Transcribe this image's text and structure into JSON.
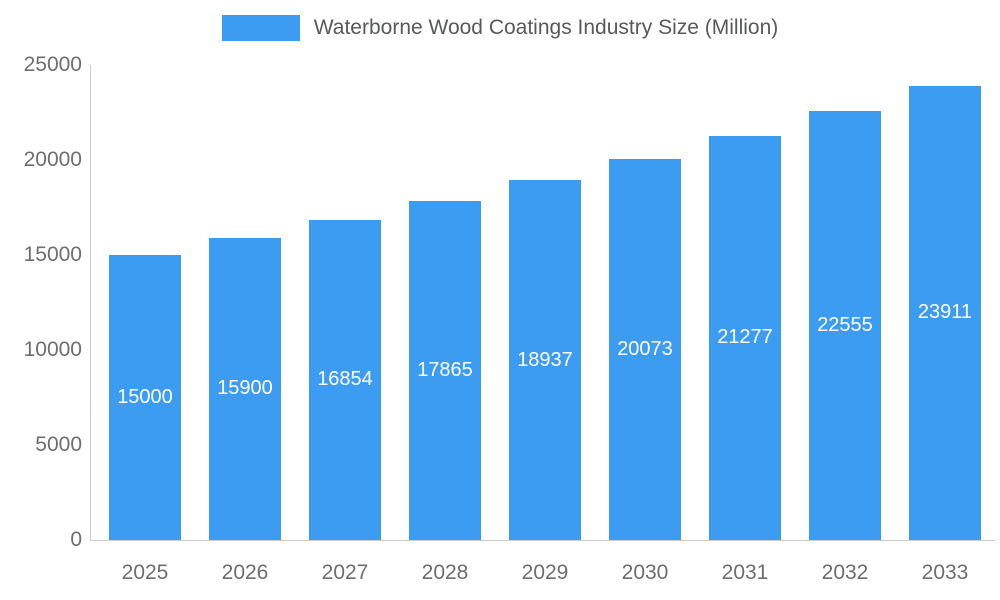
{
  "chart_data": {
    "type": "bar",
    "title": "Waterborne Wood Coatings Industry Size (Million)",
    "categories": [
      "2025",
      "2026",
      "2027",
      "2028",
      "2029",
      "2030",
      "2031",
      "2032",
      "2033"
    ],
    "values": [
      15000,
      15900,
      16854,
      17865,
      18937,
      20073,
      21277,
      22555,
      23911
    ],
    "xlabel": "",
    "ylabel": "",
    "ylim": [
      0,
      25000
    ],
    "yticks": [
      0,
      5000,
      10000,
      15000,
      20000,
      25000
    ],
    "grid": false,
    "legend_position": "top",
    "bar_color": "#3b9cf1",
    "bar_value_label_color": "#ffffff",
    "axis_color": "#cccccc",
    "tick_label_color": "#6e6e6e",
    "title_color": "#58595b"
  }
}
